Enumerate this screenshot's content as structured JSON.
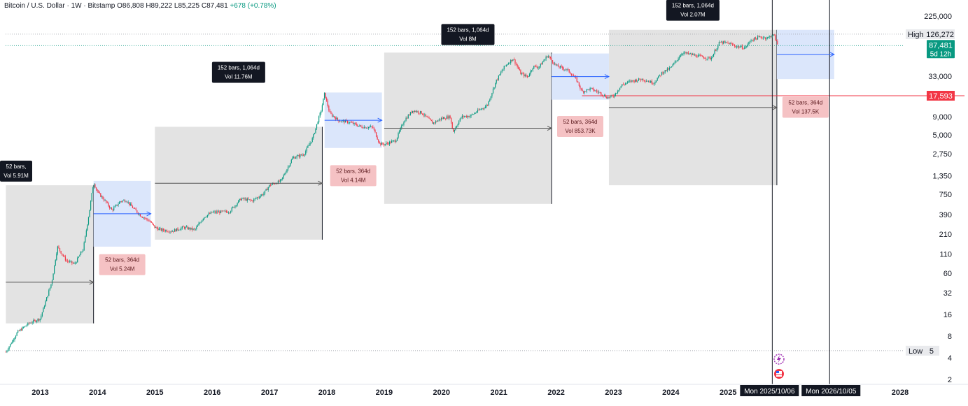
{
  "header": {
    "symbol": "Bitcoin / U.S. Dollar · 1W · Bitstamp",
    "open": "O86,808",
    "high": "H89,222",
    "low": "L85,225",
    "close": "C87,481",
    "change": "+678 (+0.78%)"
  },
  "colors": {
    "up": "#089981",
    "down": "#f23645",
    "box_gray": "#e3e3e3",
    "box_blue": "#dbe6fb",
    "arrow_blue": "#2962ff",
    "label_dark": "#131722",
    "label_pink": "#f5c2c4",
    "support": "#f23645"
  },
  "chart_data": {
    "type": "candlestick",
    "title": "Bitcoin / U.S. Dollar · 1W · Bitstamp",
    "xlabel": "",
    "ylabel": "",
    "scale": "log",
    "ylim": [
      1.5,
      300000
    ],
    "xlim": [
      2012.4,
      2028.6
    ],
    "x_ticks": [
      "2013",
      "2014",
      "2015",
      "2016",
      "2017",
      "2018",
      "2019",
      "2020",
      "2021",
      "2022",
      "2023",
      "2024",
      "2025",
      "2026",
      "2027",
      "2028"
    ],
    "y_ticks": [
      "225,000",
      "33,000",
      "9,000",
      "5,000",
      "2,750",
      "1,350",
      "750",
      "390",
      "210",
      "110",
      "60",
      "32",
      "16",
      "8",
      "4",
      "2"
    ],
    "y_tick_values": [
      225000,
      33000,
      9000,
      5000,
      2750,
      1350,
      750,
      390,
      210,
      110,
      60,
      32,
      16,
      8,
      4,
      2
    ],
    "price_path": [
      [
        2012.4,
        4.8
      ],
      [
        2012.6,
        9
      ],
      [
        2012.8,
        12
      ],
      [
        2013.0,
        14
      ],
      [
        2013.2,
        45
      ],
      [
        2013.3,
        140
      ],
      [
        2013.45,
        90
      ],
      [
        2013.6,
        80
      ],
      [
        2013.75,
        130
      ],
      [
        2013.85,
        400
      ],
      [
        2013.93,
        1100
      ],
      [
        2014.0,
        800
      ],
      [
        2014.1,
        650
      ],
      [
        2014.25,
        450
      ],
      [
        2014.4,
        600
      ],
      [
        2014.5,
        620
      ],
      [
        2014.6,
        500
      ],
      [
        2014.75,
        380
      ],
      [
        2014.9,
        320
      ],
      [
        2015.0,
        260
      ],
      [
        2015.1,
        240
      ],
      [
        2015.3,
        230
      ],
      [
        2015.5,
        260
      ],
      [
        2015.7,
        240
      ],
      [
        2015.85,
        360
      ],
      [
        2016.0,
        420
      ],
      [
        2016.3,
        430
      ],
      [
        2016.5,
        650
      ],
      [
        2016.7,
        610
      ],
      [
        2016.9,
        770
      ],
      [
        2017.0,
        1000
      ],
      [
        2017.2,
        1150
      ],
      [
        2017.4,
        2400
      ],
      [
        2017.6,
        2700
      ],
      [
        2017.75,
        4500
      ],
      [
        2017.9,
        11000
      ],
      [
        2017.96,
        19000
      ],
      [
        2018.05,
        10000
      ],
      [
        2018.2,
        8000
      ],
      [
        2018.4,
        7500
      ],
      [
        2018.6,
        6500
      ],
      [
        2018.8,
        6400
      ],
      [
        2018.92,
        3800
      ],
      [
        2019.0,
        3700
      ],
      [
        2019.2,
        4200
      ],
      [
        2019.35,
        8000
      ],
      [
        2019.5,
        11000
      ],
      [
        2019.65,
        10200
      ],
      [
        2019.85,
        7300
      ],
      [
        2020.0,
        8500
      ],
      [
        2020.15,
        9000
      ],
      [
        2020.2,
        5500
      ],
      [
        2020.35,
        9000
      ],
      [
        2020.5,
        9200
      ],
      [
        2020.65,
        11000
      ],
      [
        2020.8,
        13000
      ],
      [
        2020.95,
        28000
      ],
      [
        2021.1,
        45000
      ],
      [
        2021.25,
        58000
      ],
      [
        2021.38,
        36000
      ],
      [
        2021.5,
        32000
      ],
      [
        2021.6,
        45000
      ],
      [
        2021.7,
        44000
      ],
      [
        2021.85,
        64000
      ],
      [
        2022.0,
        46000
      ],
      [
        2022.2,
        40000
      ],
      [
        2022.35,
        30000
      ],
      [
        2022.45,
        20000
      ],
      [
        2022.6,
        22000
      ],
      [
        2022.75,
        19500
      ],
      [
        2022.9,
        16500
      ],
      [
        2023.0,
        17500
      ],
      [
        2023.15,
        25000
      ],
      [
        2023.3,
        28000
      ],
      [
        2023.5,
        30000
      ],
      [
        2023.7,
        26500
      ],
      [
        2023.85,
        37000
      ],
      [
        2024.0,
        43000
      ],
      [
        2024.2,
        70000
      ],
      [
        2024.5,
        62000
      ],
      [
        2024.7,
        58000
      ],
      [
        2024.85,
        97000
      ],
      [
        2025.0,
        95000
      ],
      [
        2025.15,
        85000
      ],
      [
        2025.3,
        82000
      ],
      [
        2025.4,
        105000
      ],
      [
        2025.55,
        115000
      ],
      [
        2025.7,
        112000
      ],
      [
        2025.77,
        124000
      ],
      [
        2025.8,
        120000
      ],
      [
        2025.85,
        95000
      ],
      [
        2025.88,
        87481
      ]
    ],
    "cycle_windows": [
      {
        "type": "152 bars",
        "x0": 2015.0,
        "x1": 2017.92,
        "y_hi": 6500,
        "y_lo": 175,
        "label": "152 bars, 1,064d",
        "vol": "Vol 11.76M",
        "label_y": 52000
      },
      {
        "type": "152 bars",
        "x0": 2019.0,
        "x1": 2021.92,
        "y_hi": 70000,
        "y_lo": 550,
        "label": "152 bars, 1,064d",
        "vol": "Vol 8M",
        "label_y": 175000
      },
      {
        "type": "152 bars",
        "x0": 2022.92,
        "x1": 2025.85,
        "y_hi": 145000,
        "y_lo": 1000,
        "label": "152 bars, 1,064d",
        "vol": "Vol 2.07M",
        "label_y": 380000
      },
      {
        "type": "152 bars",
        "x0": 2012.4,
        "x1": 2013.93,
        "y_hi": 1000,
        "y_lo": 12,
        "label": "52 bars,",
        "vol": "Vol 5.91M",
        "label_y": 2200
      }
    ],
    "bear_windows": [
      {
        "x0": 2013.93,
        "x1": 2014.93,
        "y_hi": 1150,
        "y_lo": 140,
        "label": "52 bars, 364d",
        "vol": "Vol 5.24M",
        "label_y": 110
      },
      {
        "x0": 2017.96,
        "x1": 2018.96,
        "y_hi": 19500,
        "y_lo": 3300,
        "label": "52 bars, 364d",
        "vol": "Vol 4.14M",
        "label_y": 1900
      },
      {
        "x0": 2021.92,
        "x1": 2022.92,
        "y_hi": 68000,
        "y_lo": 15500,
        "label": "52 bars, 364d",
        "vol": "Vol 853.73K",
        "label_y": 9200
      },
      {
        "x0": 2025.85,
        "x1": 2026.85,
        "y_hi": 145000,
        "y_lo": 30000,
        "label": "52 bars, 364d",
        "vol": "Vol 137.5K",
        "label_y": 17000
      }
    ],
    "support_level": {
      "value": 17593,
      "label": "17,593",
      "x0": 2022.45
    },
    "high_level": {
      "value": 126272,
      "label": "126,272",
      "tag": "High"
    },
    "low_level": {
      "value": 5,
      "label": "5",
      "tag": "Low"
    },
    "current_price": {
      "value": 87481,
      "label": "87,481",
      "countdown": "5d 12h"
    },
    "vertical_markers": [
      {
        "x": 2025.77,
        "label": "Mon 2025/10/06"
      },
      {
        "x": 2026.77,
        "label": "Mon 2026/10/05"
      }
    ]
  }
}
